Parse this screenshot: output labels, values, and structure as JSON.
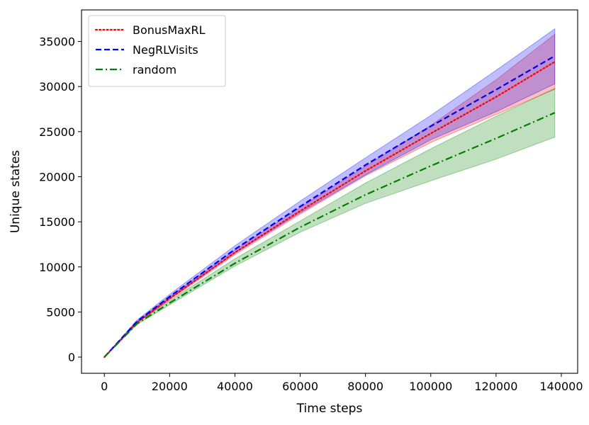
{
  "chart_data": {
    "type": "line",
    "xlabel": "Time steps",
    "ylabel": "Unique states",
    "xlim": [
      -7000,
      145000
    ],
    "ylim": [
      -1800,
      38500
    ],
    "xticks": [
      0,
      20000,
      40000,
      60000,
      80000,
      100000,
      120000,
      140000
    ],
    "yticks": [
      0,
      5000,
      10000,
      15000,
      20000,
      25000,
      30000,
      35000
    ],
    "xtick_labels": [
      "0",
      "20000",
      "40000",
      "60000",
      "80000",
      "100000",
      "120000",
      "140000"
    ],
    "ytick_labels": [
      "0",
      "5000",
      "10000",
      "15000",
      "20000",
      "25000",
      "30000",
      "35000"
    ],
    "grid": false,
    "legend_position": "upper-left",
    "x": [
      0,
      10000,
      20000,
      40000,
      60000,
      80000,
      100000,
      120000,
      138000
    ],
    "series": [
      {
        "name": "BonusMaxRL",
        "color": "#ff0000",
        "band_color": "#ff0000",
        "line_style": "dotted",
        "values": [
          0,
          3850,
          6500,
          11600,
          16200,
          20650,
          24800,
          28850,
          32750
        ],
        "lower": [
          0,
          3750,
          6350,
          11350,
          15850,
          20100,
          23800,
          26900,
          29700
        ],
        "upper": [
          0,
          3950,
          6700,
          11850,
          16600,
          21150,
          25700,
          30750,
          35800
        ]
      },
      {
        "name": "NegRLVisits",
        "color": "#0000ff",
        "band_color": "#0000ff",
        "line_style": "dashed",
        "values": [
          0,
          3950,
          6700,
          11950,
          16700,
          21300,
          25600,
          29650,
          33400
        ],
        "lower": [
          0,
          3800,
          6450,
          11500,
          16000,
          20200,
          24100,
          27200,
          30300
        ],
        "upper": [
          0,
          4100,
          6950,
          12350,
          17300,
          22100,
          26800,
          31800,
          36400
        ]
      },
      {
        "name": "random",
        "color": "#008000",
        "band_color": "#008000",
        "line_style": "dashdot",
        "values": [
          0,
          3700,
          6000,
          10400,
          14400,
          18000,
          21200,
          24250,
          27100
        ],
        "lower": [
          0,
          3600,
          5800,
          10100,
          13850,
          17050,
          19550,
          21950,
          24400
        ],
        "upper": [
          0,
          3850,
          6250,
          10900,
          15100,
          19300,
          23100,
          26700,
          29800
        ]
      }
    ]
  }
}
